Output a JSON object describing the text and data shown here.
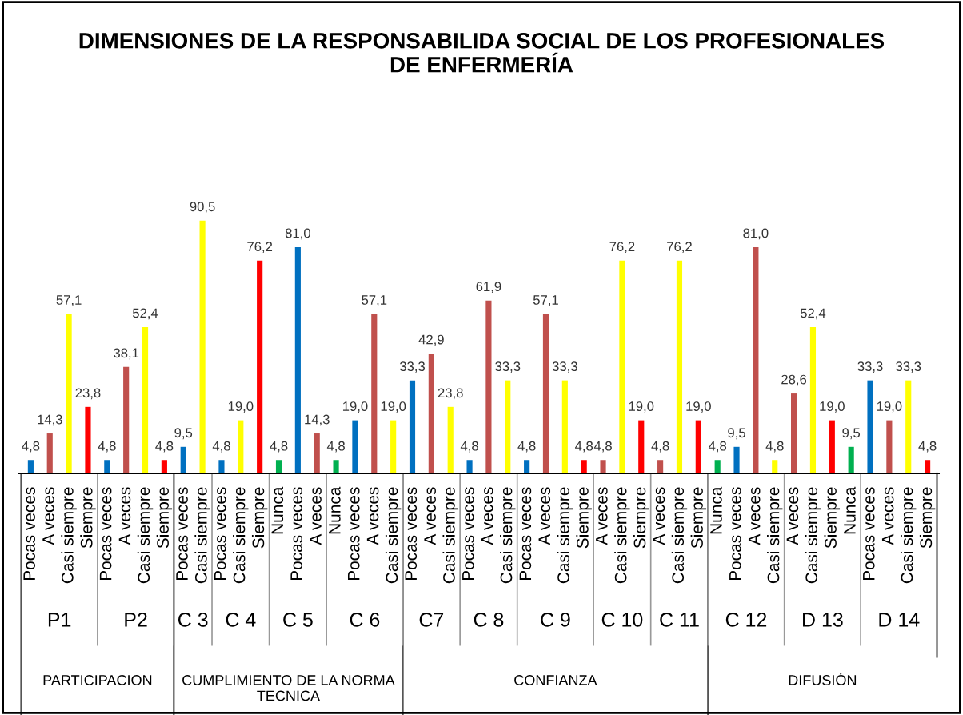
{
  "chart_data": {
    "type": "bar",
    "title": "DIMENSIONES DE LA RESPONSABILIDA SOCIAL DE LOS PROFESIONALES\nDE ENFERMERÍA",
    "categories": [
      "Pocas veces",
      "A veces",
      "Casi siempre",
      "Siempre",
      "Pocas veces",
      "A veces",
      "Casi siempre",
      "Siempre",
      "Pocas veces",
      "Casi siempre",
      "Pocas veces",
      "Casi siempre",
      "Siempre",
      "Nunca",
      "Pocas veces",
      "A veces",
      "Nunca",
      "Pocas veces",
      "A veces",
      "Casi siempre",
      "Pocas veces",
      "A veces",
      "Casi siempre",
      "Pocas veces",
      "A veces",
      "Casi siempre",
      "Pocas veces",
      "A veces",
      "Casi siempre",
      "Siempre",
      "A veces",
      "Casi siempre",
      "Siempre",
      "A veces",
      "Casi siempre",
      "Siempre",
      "Nunca",
      "Pocas veces",
      "A veces",
      "Casi siempre",
      "A veces",
      "Casi siempre",
      "Siempre",
      "Nunca",
      "Pocas veces",
      "A veces",
      "Casi siempre",
      "Siempre"
    ],
    "values": [
      4.8,
      14.3,
      57.1,
      23.8,
      4.8,
      38.1,
      52.4,
      4.8,
      9.5,
      90.5,
      4.8,
      19.0,
      76.2,
      4.8,
      81.0,
      14.3,
      4.8,
      19.0,
      57.1,
      19.0,
      33.3,
      42.9,
      23.8,
      4.8,
      61.9,
      33.3,
      4.8,
      57.1,
      33.3,
      4.8,
      4.8,
      76.2,
      19.0,
      4.8,
      76.2,
      19.0,
      4.8,
      9.5,
      81.0,
      4.8,
      28.6,
      52.4,
      19.0,
      9.5,
      33.3,
      19.0,
      33.3,
      4.8
    ],
    "value_labels": [
      "4,8",
      "14,3",
      "57,1",
      "23,8",
      "4,8",
      "38,1",
      "52,4",
      "4,8",
      "9,5",
      "90,5",
      "4,8",
      "19,0",
      "76,2",
      "4,8",
      "81,0",
      "14,3",
      "4,8",
      "19,0",
      "57,1",
      "19,0",
      "33,3",
      "42,9",
      "23,8",
      "4,8",
      "61,9",
      "33,3",
      "4,8",
      "57,1",
      "33,3",
      "4,8",
      "4,8",
      "76,2",
      "19,0",
      "4,8",
      "76,2",
      "19,0",
      "4,8",
      "9,5",
      "81,0",
      "4,8",
      "28,6",
      "52,4",
      "19,0",
      "9,5",
      "33,3",
      "19,0",
      "33,3",
      "4,8"
    ],
    "colors": [
      "#0070c0",
      "#c0504d",
      "#ffff00",
      "#ff0000",
      "#0070c0",
      "#c0504d",
      "#ffff00",
      "#ff0000",
      "#0070c0",
      "#ffff00",
      "#0070c0",
      "#ffff00",
      "#ff0000",
      "#00b050",
      "#0070c0",
      "#c0504d",
      "#00b050",
      "#0070c0",
      "#c0504d",
      "#ffff00",
      "#0070c0",
      "#c0504d",
      "#ffff00",
      "#0070c0",
      "#c0504d",
      "#ffff00",
      "#0070c0",
      "#c0504d",
      "#ffff00",
      "#ff0000",
      "#c0504d",
      "#ffff00",
      "#ff0000",
      "#c0504d",
      "#ffff00",
      "#ff0000",
      "#00b050",
      "#0070c0",
      "#c0504d",
      "#ffff00",
      "#c0504d",
      "#ffff00",
      "#ff0000",
      "#00b050",
      "#0070c0",
      "#c0504d",
      "#ffff00",
      "#ff0000"
    ],
    "annotations": [
      "P1",
      "P2",
      "C 3",
      "C 4",
      "C 5",
      "C 6",
      "C7",
      "C 8",
      "C 9",
      "C 10",
      "C 11",
      "C 12",
      "D 13",
      "D 14",
      "PARTICIPACION",
      "CUMPLIMIENTO DE LA NORMA\nTECNICA",
      "CONFIANZA",
      "DIFUSIÓN"
    ]
  }
}
